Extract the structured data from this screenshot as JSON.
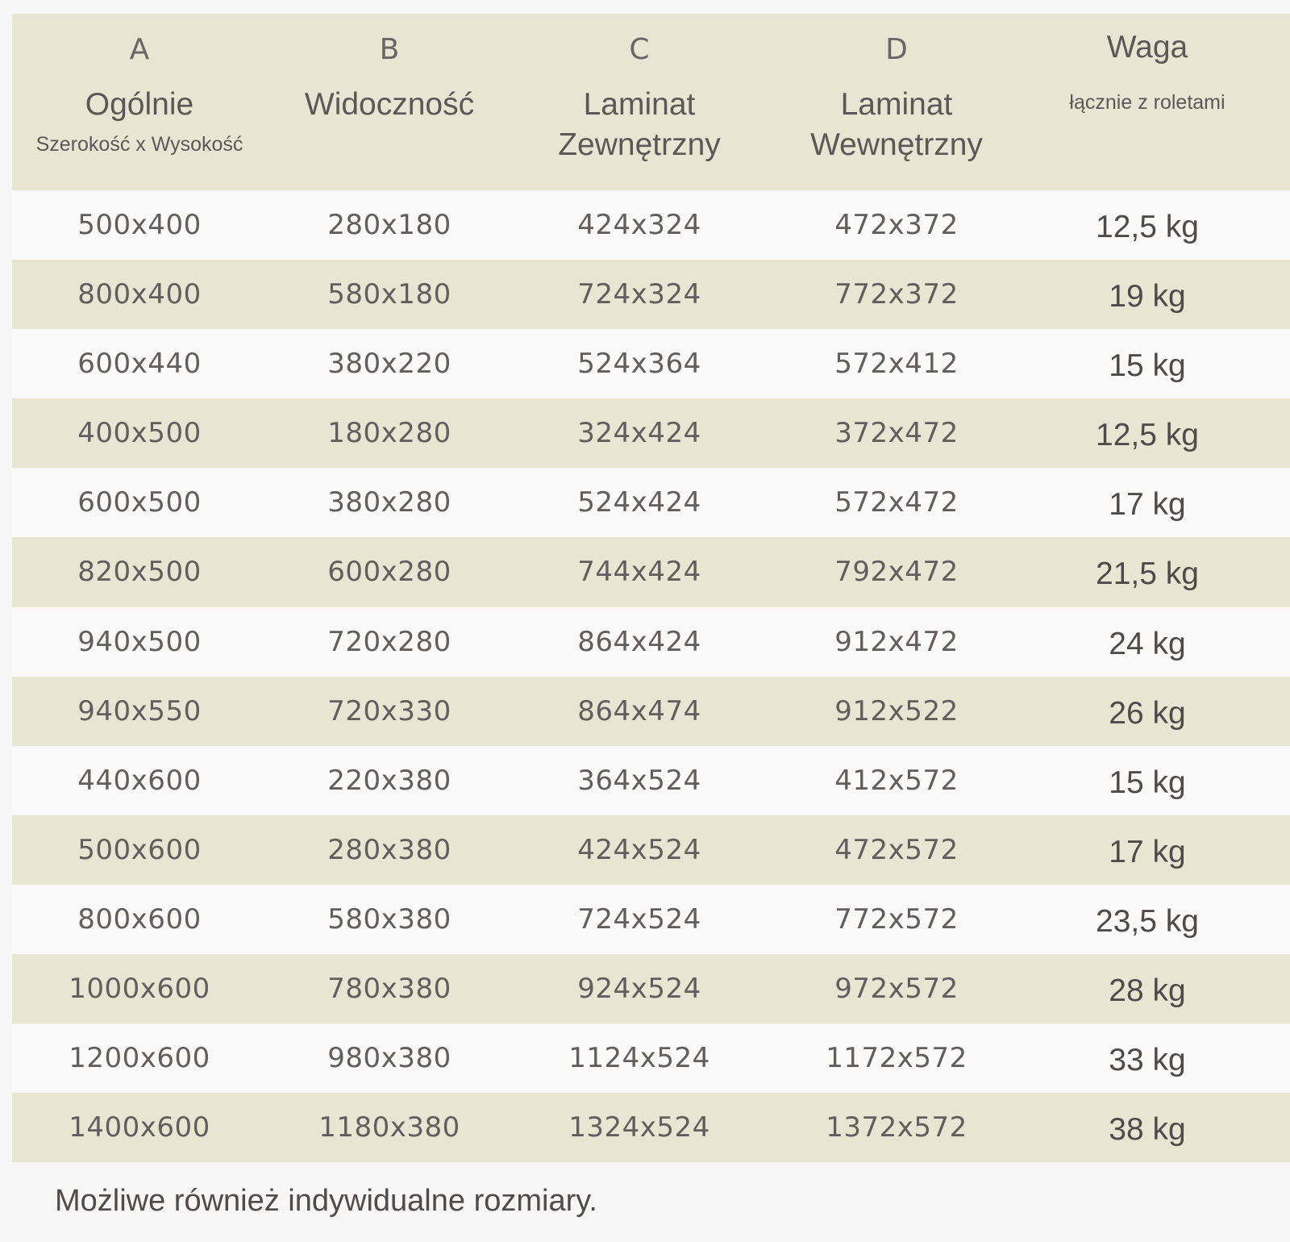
{
  "header": {
    "col_a": {
      "letter": "A",
      "title": "Ogólnie",
      "subtitle": "Szerokość x Wysokość"
    },
    "col_b": {
      "letter": "B",
      "title": "Widoczność"
    },
    "col_c": {
      "letter": "C",
      "title_line1": "Laminat",
      "title_line2": "Zewnętrzny"
    },
    "col_d": {
      "letter": "D",
      "title_line1": "Laminat",
      "title_line2": "Wewnętrzny"
    },
    "col_w": {
      "title": "Waga",
      "subtitle": "łącznie z roletami"
    }
  },
  "rows": [
    {
      "a": "500x400",
      "b": "280x180",
      "c": "424x324",
      "d": "472x372",
      "w": "12,5 kg"
    },
    {
      "a": "800x400",
      "b": "580x180",
      "c": "724x324",
      "d": "772x372",
      "w": "19 kg"
    },
    {
      "a": "600x440",
      "b": "380x220",
      "c": "524x364",
      "d": "572x412",
      "w": "15 kg"
    },
    {
      "a": "400x500",
      "b": "180x280",
      "c": "324x424",
      "d": "372x472",
      "w": "12,5 kg"
    },
    {
      "a": "600x500",
      "b": "380x280",
      "c": "524x424",
      "d": "572x472",
      "w": "17 kg"
    },
    {
      "a": "820x500",
      "b": "600x280",
      "c": "744x424",
      "d": "792x472",
      "w": "21,5 kg"
    },
    {
      "a": "940x500",
      "b": "720x280",
      "c": "864x424",
      "d": "912x472",
      "w": "24 kg"
    },
    {
      "a": "940x550",
      "b": "720x330",
      "c": "864x474",
      "d": "912x522",
      "w": "26 kg"
    },
    {
      "a": "440x600",
      "b": "220x380",
      "c": "364x524",
      "d": "412x572",
      "w": "15 kg"
    },
    {
      "a": "500x600",
      "b": "280x380",
      "c": "424x524",
      "d": "472x572",
      "w": "17 kg"
    },
    {
      "a": "800x600",
      "b": "580x380",
      "c": "724x524",
      "d": "772x572",
      "w": "23,5 kg"
    },
    {
      "a": "1000x600",
      "b": "780x380",
      "c": "924x524",
      "d": "972x572",
      "w": "28 kg"
    },
    {
      "a": "1200x600",
      "b": "980x380",
      "c": "1124x524",
      "d": "1172x572",
      "w": "33 kg"
    },
    {
      "a": "1400x600",
      "b": "1180x380",
      "c": "1324x524",
      "d": "1372x572",
      "w": "38 kg"
    }
  ],
  "footer": {
    "note": "Możliwe również indywidualne rozmiary."
  },
  "colors": {
    "header_bg": "#e9e5d3",
    "row_alt_bg": "#e9e5d3",
    "row_bg": "#f9f9f9",
    "text": "#5a5656"
  }
}
